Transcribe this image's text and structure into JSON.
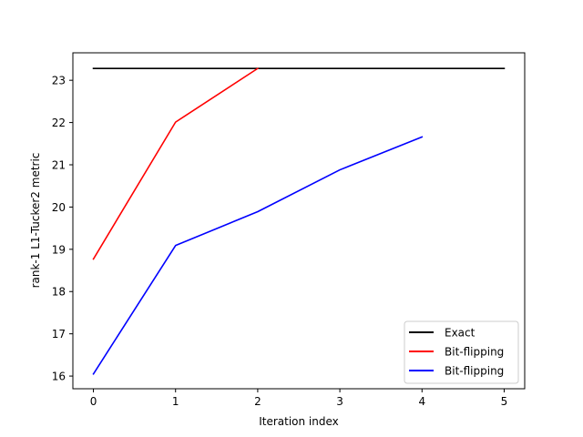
{
  "chart_data": {
    "type": "line",
    "title": "",
    "xlabel": "Iteration index",
    "ylabel": "rank-1 L1-Tucker2 metric",
    "xlim": [
      -0.25,
      5.25
    ],
    "ylim": [
      15.7,
      23.65
    ],
    "xticks": [
      0,
      1,
      2,
      3,
      4,
      5
    ],
    "yticks": [
      16,
      17,
      18,
      19,
      20,
      21,
      22,
      23
    ],
    "grid": false,
    "legend_position": "lower-right",
    "series": [
      {
        "name": "Exact",
        "color": "#000000",
        "x": [
          0,
          1,
          2,
          3,
          4,
          5
        ],
        "y": [
          23.28,
          23.28,
          23.28,
          23.28,
          23.28,
          23.28
        ]
      },
      {
        "name": "Bit-flipping",
        "color": "#ff0000",
        "x": [
          0,
          1,
          2
        ],
        "y": [
          18.77,
          22.01,
          23.28
        ]
      },
      {
        "name": "Bit-flipping",
        "color": "#0000ff",
        "x": [
          0,
          1,
          2,
          3,
          4
        ],
        "y": [
          16.05,
          19.09,
          19.89,
          20.88,
          21.66
        ]
      }
    ]
  }
}
